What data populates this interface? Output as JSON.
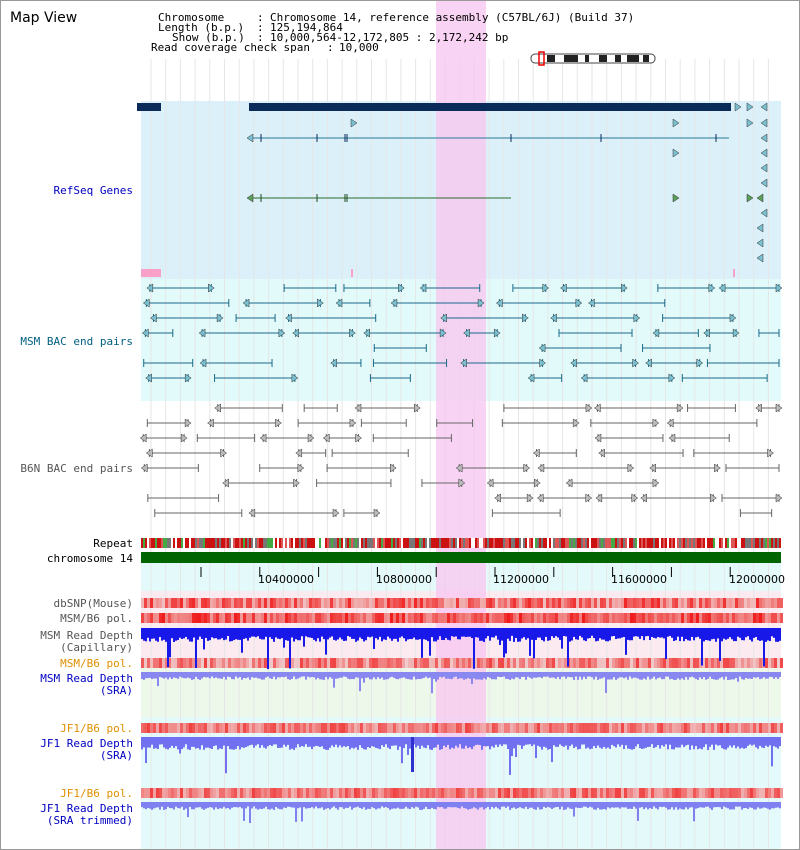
{
  "title": "Map View",
  "info": {
    "chromosome_key": "Chromosome",
    "chromosome_val": "Chromosome 14, reference assembly (C57BL/6J) (Build 37)",
    "length_key": "Length (b.p.)",
    "length_val": "125,194,864",
    "show_key": "Show (b.p.)",
    "show_val": "10,000,564-12,172,805 : 2,172,242 bp",
    "coverage_key": "Read coverage check span",
    "coverage_val": "10,000"
  },
  "tracks": {
    "refseq": "RefSeq Genes",
    "msm_bac": "MSM BAC end pairs",
    "b6n_bac": "B6N BAC end pairs",
    "repeat": "Repeat",
    "chromosome": "chromosome 14",
    "dbsnp": "dbSNP(Mouse)",
    "msm_b6_pol": "MSM/B6 pol.",
    "msm_depth_1": "MSM Read Depth",
    "msm_depth_1b": "(Capillary)",
    "msm_b6_pol_2": "MSM/B6 pol.",
    "msm_depth_2": "MSM Read Depth",
    "msm_depth_2b": "(SRA)",
    "jf1_pol": "JF1/B6 pol.",
    "jf1_depth": "JF1 Read Depth",
    "jf1_depth_b": "(SRA)",
    "jf1_pol_2": "JF1/B6 pol.",
    "jf1_depth_2": "JF1 Read Depth",
    "jf1_depth_2b": "(SRA trimmed)"
  },
  "axis_ticks": [
    "10400000",
    "10800000",
    "11200000",
    "11600000",
    "12000000"
  ],
  "colors": {
    "refseq_label": "#0000c0",
    "msm_label": "#006080",
    "gray_label": "#555555",
    "orange_label": "#e09000",
    "blue_label": "#0000c0",
    "highlight": "#f8c8f0"
  }
}
